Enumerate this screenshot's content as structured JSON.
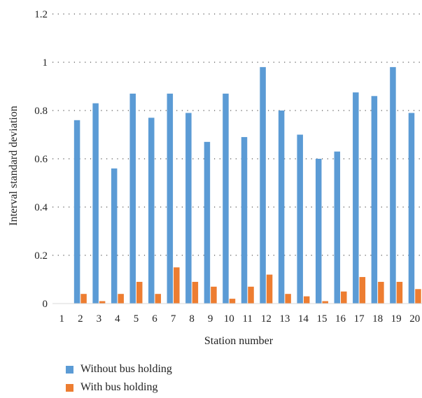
{
  "chart_data": {
    "type": "bar",
    "title": "",
    "xlabel": "Station number",
    "ylabel": "Interval standard deviation",
    "ylim": [
      0,
      1.2
    ],
    "yticks": [
      "0",
      "0.2",
      "0.4",
      "0.6",
      "0.8",
      "1",
      "1.2"
    ],
    "grid": "horizontal dotted",
    "legend_position": "bottom-left",
    "categories": [
      "1",
      "2",
      "3",
      "4",
      "5",
      "6",
      "7",
      "8",
      "9",
      "10",
      "11",
      "12",
      "13",
      "14",
      "15",
      "16",
      "17",
      "18",
      "19",
      "20"
    ],
    "series": [
      {
        "name": "Without bus holding",
        "color": "#5b9bd5",
        "values": [
          0,
          0.76,
          0.83,
          0.56,
          0.87,
          0.77,
          0.87,
          0.79,
          0.67,
          0.87,
          0.69,
          0.98,
          0.8,
          0.7,
          0.6,
          0.63,
          0.875,
          0.86,
          0.98,
          0.79
        ]
      },
      {
        "name": "With bus holding",
        "color": "#ed7d31",
        "values": [
          0,
          0.04,
          0.01,
          0.04,
          0.09,
          0.04,
          0.15,
          0.09,
          0.07,
          0.02,
          0.07,
          0.12,
          0.04,
          0.03,
          0.01,
          0.05,
          0.11,
          0.09,
          0.09,
          0.06
        ]
      }
    ]
  }
}
